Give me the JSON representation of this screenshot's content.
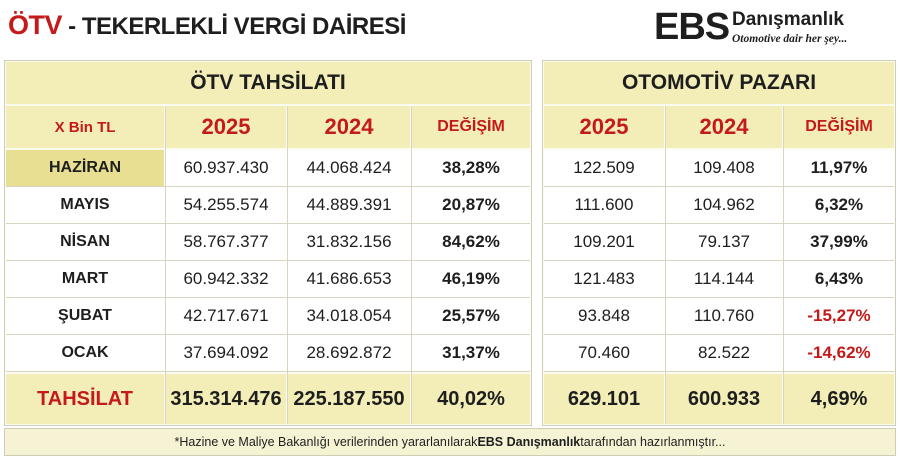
{
  "header": {
    "title_main": "ÖTV",
    "title_rest": " - TEKERLEKLİ VERGİ DAİRESİ"
  },
  "logo": {
    "mark": "EBS",
    "brand": "Danışmanlık",
    "tagline": "Otomotive dair her şey..."
  },
  "left": {
    "title": "ÖTV TAHSİLATI",
    "unit": "X Bin TL",
    "col_2025": "2025",
    "col_2024": "2024",
    "col_change": "DEĞİŞİM"
  },
  "right": {
    "title": "OTOMOTİV PAZARI",
    "col_2025": "2025",
    "col_2024": "2024",
    "col_change": "DEĞİŞİM"
  },
  "rows": [
    {
      "month": "HAZİRAN",
      "tax_2025": "60.937.430",
      "tax_2024": "44.068.424",
      "tax_change": "38,28%",
      "mkt_2025": "122.509",
      "mkt_2024": "109.408",
      "mkt_change": "11,97%"
    },
    {
      "month": "MAYIS",
      "tax_2025": "54.255.574",
      "tax_2024": "44.889.391",
      "tax_change": "20,87%",
      "mkt_2025": "111.600",
      "mkt_2024": "104.962",
      "mkt_change": "6,32%"
    },
    {
      "month": "NİSAN",
      "tax_2025": "58.767.377",
      "tax_2024": "31.832.156",
      "tax_change": "84,62%",
      "mkt_2025": "109.201",
      "mkt_2024": "79.137",
      "mkt_change": "37,99%"
    },
    {
      "month": "MART",
      "tax_2025": "60.942.332",
      "tax_2024": "41.686.653",
      "tax_change": "46,19%",
      "mkt_2025": "121.483",
      "mkt_2024": "114.144",
      "mkt_change": "6,43%"
    },
    {
      "month": "ŞUBAT",
      "tax_2025": "42.717.671",
      "tax_2024": "34.018.054",
      "tax_change": "25,57%",
      "mkt_2025": "93.848",
      "mkt_2024": "110.760",
      "mkt_change": "-15,27%"
    },
    {
      "month": "OCAK",
      "tax_2025": "37.694.092",
      "tax_2024": "28.692.872",
      "tax_change": "31,37%",
      "mkt_2025": "70.460",
      "mkt_2024": "82.522",
      "mkt_change": "-14,62%"
    }
  ],
  "totals": {
    "label": "TAHSİLAT",
    "tax_2025": "315.314.476",
    "tax_2024": "225.187.550",
    "tax_change": "40,02%",
    "mkt_2025": "629.101",
    "mkt_2024": "600.933",
    "mkt_change": "4,69%"
  },
  "footer": {
    "before": "*Hazine ve Maliye Bakanlığı verilerinden yararlanılarak ",
    "brand": "EBS Danışmanlık",
    "after": " tarafından hazırlanmıştır..."
  },
  "colors": {
    "accent_red": "#c41a1a",
    "header_fill": "#f3eeb8",
    "highlight_fill": "#e8df93"
  }
}
